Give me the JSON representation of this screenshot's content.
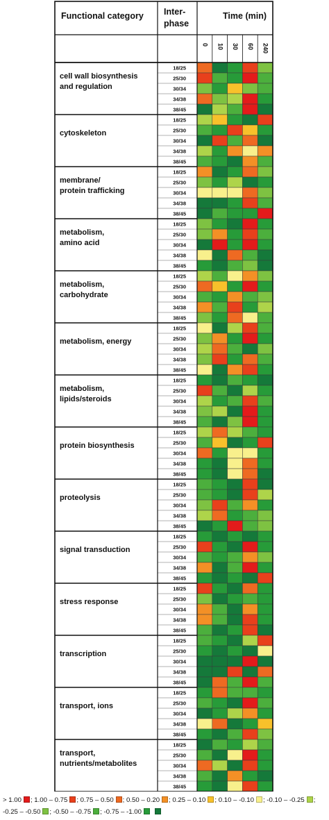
{
  "chart_data": {
    "type": "heatmap",
    "header": {
      "category_col": "Functional category",
      "phase_col": [
        "Inter-",
        "phase"
      ],
      "time_col": "Time (min)"
    },
    "time_points": [
      "0",
      "10",
      "30",
      "60",
      "240"
    ],
    "phases": [
      "18/25",
      "25/30",
      "30/34",
      "34/38",
      "38/45"
    ],
    "color_bins": [
      {
        "label": "> 1.00",
        "color": "#e31b1b"
      },
      {
        "label": "1.00 – 0.75",
        "color": "#e8401c"
      },
      {
        "label": "0.75 – 0.50",
        "color": "#ee6a22"
      },
      {
        "label": "0.50 – 0.20",
        "color": "#f39026"
      },
      {
        "label": "0.25 – 0.10",
        "color": "#f8c12b"
      },
      {
        "label": "0.10 – -0.10",
        "color": "#f8f08c"
      },
      {
        "label": "-0.10 – -0.25",
        "color": "#aed44a"
      },
      {
        "label": "-0.25 – -0.50",
        "color": "#7ec242"
      },
      {
        "label": "-0.50 – -0.75",
        "color": "#4caf3d"
      },
      {
        "label": "-0.75 – -1.00",
        "color": "#279b39"
      },
      {
        "label": "",
        "color": "#15793a"
      }
    ],
    "categories": [
      {
        "name": [
          "cell wall biosynthesis",
          "and regulation"
        ],
        "bins": [
          [
            2,
            10,
            9,
            1,
            7
          ],
          [
            1,
            8,
            9,
            0,
            8
          ],
          [
            7,
            9,
            4,
            7,
            8
          ],
          [
            2,
            7,
            6,
            0,
            9
          ],
          [
            10,
            6,
            8,
            0,
            10
          ]
        ]
      },
      {
        "name": [
          "cytoskeleton"
        ],
        "bins": [
          [
            6,
            4,
            9,
            10,
            1
          ],
          [
            8,
            9,
            1,
            4,
            9
          ],
          [
            10,
            1,
            8,
            2,
            10
          ],
          [
            6,
            9,
            3,
            5,
            3
          ],
          [
            8,
            9,
            10,
            3,
            8
          ]
        ]
      },
      {
        "name": [
          "membrane/",
          "protein trafficking"
        ],
        "bins": [
          [
            3,
            10,
            9,
            2,
            7
          ],
          [
            7,
            9,
            6,
            10,
            9
          ],
          [
            5,
            5,
            5,
            2,
            7
          ],
          [
            10,
            10,
            9,
            1,
            8
          ],
          [
            10,
            8,
            9,
            9,
            0
          ]
        ]
      },
      {
        "name": [
          "metabolism,",
          "amino acid"
        ],
        "bins": [
          [
            7,
            9,
            10,
            0,
            9
          ],
          [
            7,
            3,
            9,
            1,
            8
          ],
          [
            10,
            0,
            9,
            0,
            9
          ],
          [
            5,
            10,
            2,
            8,
            10
          ],
          [
            9,
            10,
            8,
            7,
            10
          ]
        ]
      },
      {
        "name": [
          "metabolism,",
          "carbohydrate"
        ],
        "bins": [
          [
            6,
            8,
            5,
            3,
            7
          ],
          [
            2,
            4,
            9,
            0,
            9
          ],
          [
            8,
            9,
            3,
            8,
            7
          ],
          [
            3,
            8,
            1,
            9,
            6
          ],
          [
            7,
            9,
            2,
            5,
            8
          ]
        ]
      },
      {
        "name": [
          "metabolism, energy"
        ],
        "bins": [
          [
            5,
            10,
            6,
            1,
            8
          ],
          [
            7,
            3,
            9,
            0,
            9
          ],
          [
            6,
            2,
            8,
            10,
            7
          ],
          [
            7,
            1,
            9,
            2,
            8
          ],
          [
            5,
            10,
            3,
            1,
            9
          ]
        ]
      },
      {
        "name": [
          "metabolism,",
          "lipids/steroids"
        ],
        "bins": [
          [
            9,
            10,
            8,
            9,
            10
          ],
          [
            1,
            8,
            10,
            6,
            9
          ],
          [
            6,
            9,
            8,
            1,
            8
          ],
          [
            7,
            6,
            10,
            0,
            9
          ],
          [
            8,
            10,
            7,
            0,
            9
          ]
        ]
      },
      {
        "name": [
          "protein biosynthesis"
        ],
        "bins": [
          [
            6,
            2,
            6,
            8,
            9
          ],
          [
            8,
            4,
            10,
            9,
            1
          ],
          [
            2,
            9,
            5,
            5,
            9
          ],
          [
            9,
            10,
            5,
            2,
            9
          ],
          [
            9,
            10,
            5,
            2,
            10
          ]
        ]
      },
      {
        "name": [
          "proteolysis"
        ],
        "bins": [
          [
            8,
            9,
            10,
            1,
            10
          ],
          [
            8,
            9,
            10,
            1,
            6
          ],
          [
            7,
            1,
            8,
            3,
            9
          ],
          [
            6,
            2,
            9,
            8,
            7
          ],
          [
            10,
            9,
            0,
            8,
            7
          ]
        ]
      },
      {
        "name": [
          "signal transduction"
        ],
        "bins": [
          [
            9,
            10,
            9,
            10,
            9
          ],
          [
            1,
            9,
            10,
            0,
            9
          ],
          [
            8,
            9,
            8,
            3,
            7
          ],
          [
            3,
            10,
            8,
            0,
            9
          ],
          [
            9,
            10,
            9,
            10,
            1
          ]
        ]
      },
      {
        "name": [
          "stress response"
        ],
        "bins": [
          [
            1,
            9,
            10,
            2,
            9
          ],
          [
            7,
            10,
            9,
            8,
            9
          ],
          [
            3,
            8,
            10,
            3,
            9
          ],
          [
            3,
            8,
            10,
            1,
            9
          ],
          [
            8,
            10,
            9,
            1,
            10
          ]
        ]
      },
      {
        "name": [
          "transcription"
        ],
        "bins": [
          [
            8,
            9,
            10,
            6,
            1
          ],
          [
            9,
            10,
            9,
            10,
            5
          ],
          [
            10,
            10,
            10,
            0,
            10
          ],
          [
            10,
            10,
            1,
            10,
            2
          ],
          [
            10,
            2,
            8,
            0,
            8
          ]
        ]
      },
      {
        "name": [
          "transport, ions"
        ],
        "bins": [
          [
            9,
            2,
            8,
            8,
            9
          ],
          [
            8,
            9,
            10,
            0,
            8
          ],
          [
            10,
            9,
            6,
            3,
            9
          ],
          [
            5,
            2,
            10,
            9,
            4
          ],
          [
            9,
            10,
            8,
            1,
            7
          ]
        ]
      },
      {
        "name": [
          "transport,",
          "nutrients/metabolites"
        ],
        "bins": [
          [
            10,
            8,
            9,
            6,
            8
          ],
          [
            8,
            10,
            5,
            0,
            9
          ],
          [
            2,
            6,
            10,
            1,
            9
          ],
          [
            8,
            10,
            3,
            9,
            10
          ],
          [
            9,
            10,
            5,
            1,
            9
          ]
        ]
      }
    ]
  }
}
